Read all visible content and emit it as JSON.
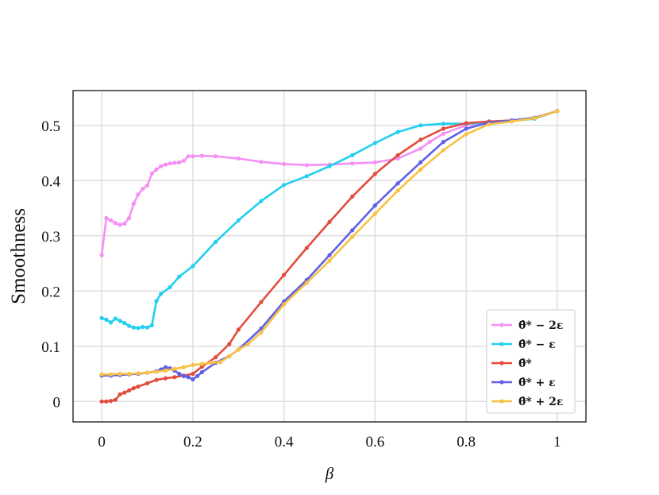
{
  "chart_data": {
    "type": "line",
    "title": "",
    "xlabel": "β",
    "ylabel": "Smoothness",
    "xlim": [
      -0.063,
      1.063
    ],
    "ylim": [
      -0.037,
      0.563
    ],
    "xticks": [
      0,
      0.2,
      0.4,
      0.6,
      0.8,
      1
    ],
    "xtick_labels": [
      "0",
      "0.2",
      "0.4",
      "0.6",
      "0.8",
      "1"
    ],
    "yticks": [
      0,
      0.1,
      0.2,
      0.3,
      0.4,
      0.5
    ],
    "ytick_labels": [
      "0",
      "0.1",
      "0.2",
      "0.3",
      "0.4",
      "0.5"
    ],
    "grid": true,
    "legend_position": "bottom-right",
    "series": [
      {
        "name": "θ̂* − 2ε",
        "color": "#f590f5",
        "x": [
          0,
          0.01,
          0.02,
          0.03,
          0.04,
          0.05,
          0.06,
          0.07,
          0.08,
          0.09,
          0.1,
          0.11,
          0.12,
          0.13,
          0.14,
          0.15,
          0.16,
          0.17,
          0.18,
          0.19,
          0.2,
          0.22,
          0.25,
          0.3,
          0.35,
          0.4,
          0.45,
          0.5,
          0.55,
          0.6,
          0.65,
          0.7,
          0.72,
          0.75,
          0.8,
          0.85,
          0.9,
          0.95,
          1.0
        ],
        "values": [
          0.265,
          0.332,
          0.328,
          0.323,
          0.32,
          0.322,
          0.332,
          0.358,
          0.375,
          0.385,
          0.391,
          0.413,
          0.42,
          0.426,
          0.429,
          0.431,
          0.432,
          0.433,
          0.436,
          0.444,
          0.444,
          0.445,
          0.444,
          0.44,
          0.434,
          0.43,
          0.428,
          0.429,
          0.431,
          0.433,
          0.44,
          0.458,
          0.47,
          0.485,
          0.5,
          0.506,
          0.508,
          0.512,
          0.526
        ]
      },
      {
        "name": "θ̂* − ε",
        "color": "#22d0ee",
        "x": [
          0,
          0.01,
          0.02,
          0.03,
          0.04,
          0.05,
          0.06,
          0.07,
          0.08,
          0.09,
          0.1,
          0.11,
          0.12,
          0.13,
          0.15,
          0.17,
          0.2,
          0.25,
          0.3,
          0.35,
          0.4,
          0.45,
          0.5,
          0.55,
          0.6,
          0.65,
          0.7,
          0.75,
          0.8,
          0.85,
          0.9,
          0.95,
          1.0
        ],
        "values": [
          0.151,
          0.148,
          0.143,
          0.15,
          0.146,
          0.142,
          0.137,
          0.134,
          0.133,
          0.135,
          0.134,
          0.138,
          0.182,
          0.195,
          0.207,
          0.226,
          0.245,
          0.289,
          0.328,
          0.363,
          0.392,
          0.408,
          0.426,
          0.446,
          0.468,
          0.488,
          0.5,
          0.503,
          0.503,
          0.505,
          0.508,
          0.512,
          0.526
        ]
      },
      {
        "name": "θ̂*",
        "color": "#e34d3d",
        "x": [
          0,
          0.01,
          0.02,
          0.03,
          0.04,
          0.05,
          0.06,
          0.07,
          0.08,
          0.1,
          0.12,
          0.14,
          0.16,
          0.18,
          0.2,
          0.22,
          0.25,
          0.28,
          0.3,
          0.35,
          0.4,
          0.45,
          0.5,
          0.55,
          0.6,
          0.65,
          0.7,
          0.75,
          0.8,
          0.85,
          0.9,
          0.95,
          1.0
        ],
        "values": [
          0.0,
          0.0,
          0.001,
          0.003,
          0.013,
          0.016,
          0.02,
          0.024,
          0.027,
          0.033,
          0.039,
          0.042,
          0.044,
          0.047,
          0.05,
          0.063,
          0.08,
          0.104,
          0.13,
          0.18,
          0.229,
          0.278,
          0.325,
          0.371,
          0.412,
          0.446,
          0.474,
          0.494,
          0.504,
          0.507,
          0.509,
          0.513,
          0.526
        ]
      },
      {
        "name": "θ̂* + ε",
        "color": "#6060e6",
        "x": [
          0,
          0.02,
          0.04,
          0.06,
          0.08,
          0.1,
          0.12,
          0.13,
          0.14,
          0.15,
          0.16,
          0.17,
          0.18,
          0.19,
          0.2,
          0.21,
          0.22,
          0.25,
          0.28,
          0.3,
          0.35,
          0.4,
          0.45,
          0.5,
          0.55,
          0.6,
          0.65,
          0.7,
          0.75,
          0.8,
          0.85,
          0.9,
          0.95,
          1.0
        ],
        "values": [
          0.047,
          0.047,
          0.048,
          0.049,
          0.05,
          0.052,
          0.055,
          0.058,
          0.062,
          0.06,
          0.056,
          0.05,
          0.046,
          0.044,
          0.04,
          0.046,
          0.053,
          0.07,
          0.082,
          0.094,
          0.132,
          0.181,
          0.22,
          0.265,
          0.31,
          0.355,
          0.395,
          0.433,
          0.47,
          0.494,
          0.505,
          0.509,
          0.514,
          0.526
        ]
      },
      {
        "name": "θ̂* + 2ε",
        "color": "#f8c144",
        "x": [
          0,
          0.02,
          0.04,
          0.06,
          0.08,
          0.1,
          0.12,
          0.14,
          0.16,
          0.18,
          0.2,
          0.22,
          0.24,
          0.26,
          0.28,
          0.3,
          0.32,
          0.35,
          0.4,
          0.45,
          0.5,
          0.55,
          0.6,
          0.65,
          0.7,
          0.75,
          0.8,
          0.85,
          0.9,
          0.95,
          1.0
        ],
        "values": [
          0.049,
          0.049,
          0.05,
          0.05,
          0.051,
          0.052,
          0.054,
          0.056,
          0.059,
          0.062,
          0.066,
          0.068,
          0.07,
          0.071,
          0.082,
          0.094,
          0.103,
          0.125,
          0.176,
          0.215,
          0.255,
          0.298,
          0.34,
          0.382,
          0.42,
          0.455,
          0.484,
          0.502,
          0.507,
          0.513,
          0.526
        ]
      }
    ]
  }
}
